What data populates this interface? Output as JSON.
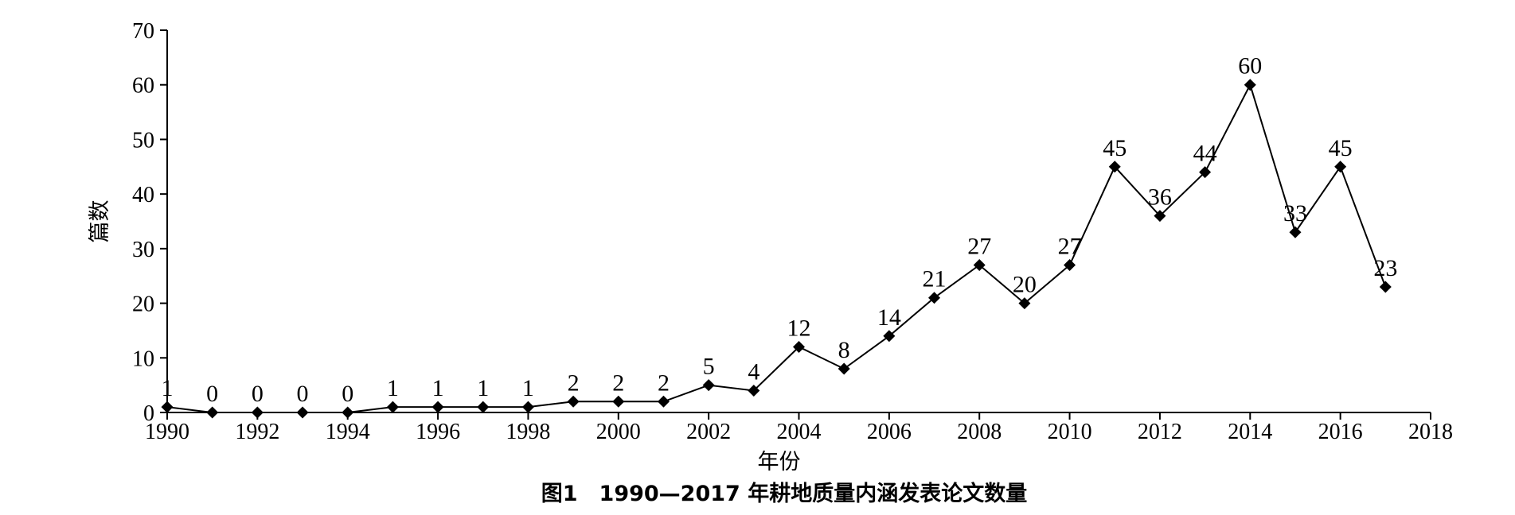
{
  "chart_data": {
    "type": "line",
    "title": "图1　1990—2017 年耕地质量内涵发表论文数量",
    "xlabel": "年份",
    "ylabel": "篇数",
    "x": [
      1990,
      1991,
      1992,
      1993,
      1994,
      1995,
      1996,
      1997,
      1998,
      1999,
      2000,
      2001,
      2002,
      2003,
      2004,
      2005,
      2006,
      2007,
      2008,
      2009,
      2010,
      2011,
      2012,
      2013,
      2014,
      2015,
      2016,
      2017
    ],
    "series": [
      {
        "values": [
          1,
          0,
          0,
          0,
          0,
          1,
          1,
          1,
          1,
          2,
          2,
          2,
          5,
          4,
          12,
          8,
          14,
          21,
          27,
          20,
          27,
          45,
          36,
          44,
          60,
          33,
          45,
          23
        ]
      }
    ],
    "xlim": [
      1990,
      2018
    ],
    "ylim": [
      0,
      70
    ],
    "xticks": [
      1990,
      1992,
      1994,
      1996,
      1998,
      2000,
      2002,
      2004,
      2006,
      2008,
      2010,
      2012,
      2014,
      2016,
      2018
    ],
    "yticks": [
      0,
      10,
      20,
      30,
      40,
      50,
      60,
      70
    ],
    "marker": "diamond",
    "grid": false,
    "legend": "none",
    "colors": {
      "line": "#000000",
      "marker": "#000000"
    }
  }
}
